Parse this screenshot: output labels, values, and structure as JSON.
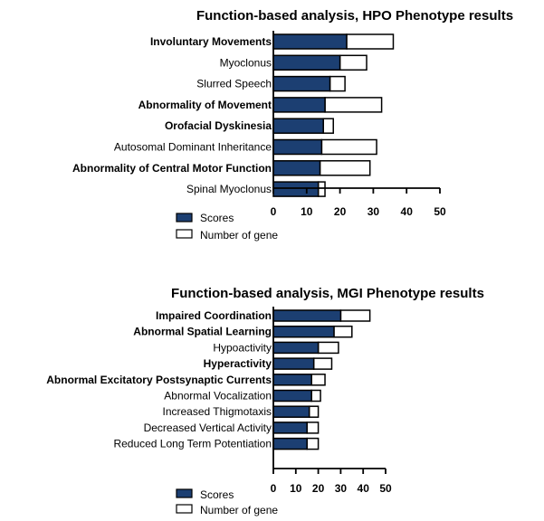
{
  "colors": {
    "score": "#1c3f72",
    "gene": "#ffffff",
    "stroke": "#000000"
  },
  "legend": {
    "scores": "Scores",
    "genes": "Number of gene"
  },
  "chart_data": [
    {
      "type": "bar",
      "orientation": "horizontal",
      "stacked": true,
      "title": "Function-based analysis, HPO Phenotype results",
      "categories": [
        "Involuntary Movements",
        "Myoclonus",
        "Slurred Speech",
        "Abnormality of Movement",
        "Orofacial Dyskinesia",
        "Autosomal Dominant Inheritance",
        "Abnormality of Central Motor Function",
        "Spinal Myoclonus"
      ],
      "bold": [
        true,
        false,
        false,
        true,
        true,
        false,
        true,
        false
      ],
      "series": [
        {
          "name": "Scores",
          "values": [
            22,
            20,
            17,
            15.5,
            15,
            14.5,
            14,
            13.5
          ]
        },
        {
          "name": "Number of gene",
          "values": [
            14,
            8,
            4.5,
            17,
            3,
            16.5,
            15,
            2
          ]
        }
      ],
      "totals": [
        36,
        28,
        21.5,
        32.5,
        18,
        31,
        29,
        15.5
      ],
      "xlim": [
        0,
        50
      ],
      "xticks": [
        "0",
        "10",
        "20",
        "30",
        "40",
        "50"
      ]
    },
    {
      "type": "bar",
      "orientation": "horizontal",
      "stacked": true,
      "title": "Function-based analysis, MGI Phenotype results",
      "categories": [
        "Impaired Coordination",
        "Abnormal Spatial Learning",
        "Hypoactivity",
        "Hyperactivity",
        "Abnormal Excitatory Postsynaptic Currents",
        "Abnormal Vocalization",
        "Increased Thigmotaxis",
        "Decreased Vertical Activity",
        "Reduced Long Term Potentiation"
      ],
      "bold": [
        true,
        true,
        false,
        true,
        true,
        false,
        false,
        false,
        false
      ],
      "series": [
        {
          "name": "Scores",
          "values": [
            30,
            27,
            20,
            18,
            17,
            17,
            16,
            15,
            15
          ]
        },
        {
          "name": "Number of gene",
          "values": [
            13,
            8,
            9,
            8,
            6,
            4,
            4,
            5,
            5
          ]
        }
      ],
      "totals": [
        43,
        35,
        29,
        26,
        23,
        21,
        20,
        20,
        20
      ],
      "xlim": [
        0,
        50
      ],
      "xticks": [
        "0",
        "10",
        "20",
        "30",
        "40",
        "50"
      ]
    }
  ]
}
